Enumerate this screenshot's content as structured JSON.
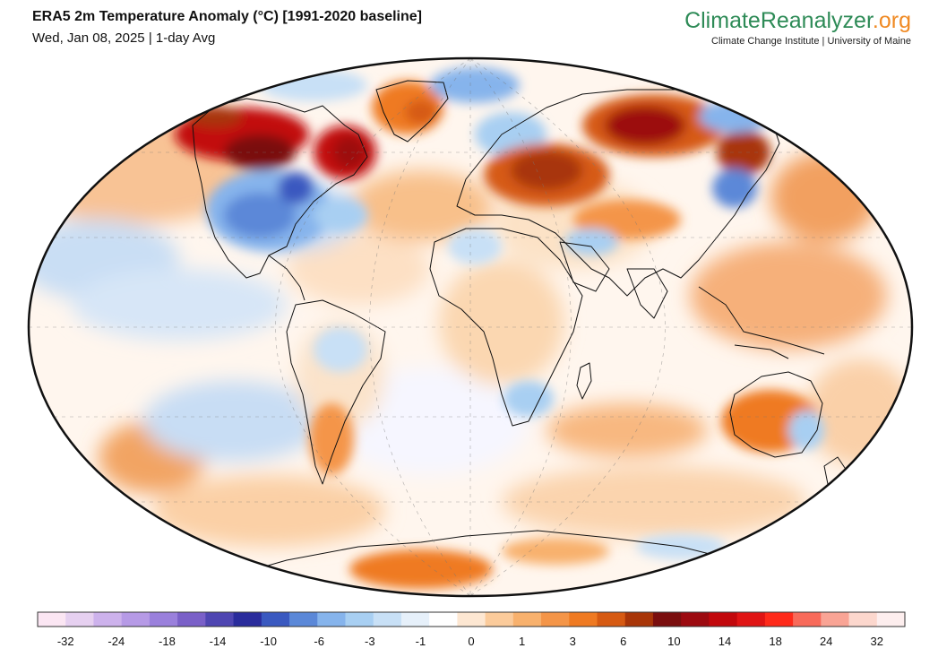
{
  "header": {
    "title": "ERA5 2m Temperature Anomaly (°C) [1991-2020 baseline]",
    "subtitle": "Wed, Jan 08, 2025 | 1-day Avg"
  },
  "brand": {
    "name": "ClimateReanalyzer",
    "tld": ".org",
    "affiliation": "Climate Change Institute | University of Maine"
  },
  "map": {
    "projection": "Robinson",
    "variable": "2m temperature anomaly",
    "regions": [
      {
        "name": "Alaska / NW Canada",
        "anomaly": 14
      },
      {
        "name": "Eastern Canada / Labrador",
        "anomaly": 14
      },
      {
        "name": "Greenland",
        "anomaly": 6
      },
      {
        "name": "Central & Eastern United States",
        "anomaly": -6
      },
      {
        "name": "Eastern Europe / Western Russia",
        "anomaly": 10
      },
      {
        "name": "Central Siberia",
        "anomaly": 14
      },
      {
        "name": "Eastern Siberia",
        "anomaly": -3
      },
      {
        "name": "Scandinavia",
        "anomaly": -3
      },
      {
        "name": "North Africa / Sahara",
        "anomaly": 1
      },
      {
        "name": "Australia interior",
        "anomaly": 6
      },
      {
        "name": "Southern Africa",
        "anomaly": -3
      },
      {
        "name": "Antarctic coast (Atlantic sector)",
        "anomaly": 6
      }
    ]
  },
  "colorbar": {
    "colors": [
      "#fbe6f3",
      "#e6d0f0",
      "#cdb2ec",
      "#b69ae6",
      "#9a80dc",
      "#7a60c8",
      "#4f46b2",
      "#2a2c9c",
      "#3a59c0",
      "#5b88d8",
      "#86b4ec",
      "#a8cff2",
      "#c8e0f6",
      "#e6f0fa",
      "#ffffff",
      "#fde7d2",
      "#fbcb9b",
      "#f8b16d",
      "#f49548",
      "#ef7a22",
      "#d65a12",
      "#a83508",
      "#7a0e0e",
      "#9c0a10",
      "#c2080c",
      "#e01414",
      "#ff2a1a",
      "#f86a5a",
      "#f9a495",
      "#fcd7cd",
      "#fdeeee"
    ],
    "labels": [
      "-32",
      "-24",
      "-18",
      "-14",
      "-10",
      "-6",
      "-3",
      "-1",
      "0",
      "1",
      "3",
      "6",
      "10",
      "14",
      "18",
      "24",
      "32"
    ]
  }
}
